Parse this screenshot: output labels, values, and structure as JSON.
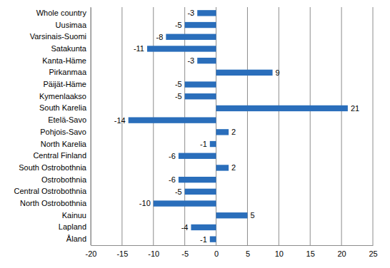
{
  "chart_data": {
    "type": "bar",
    "orientation": "horizontal",
    "categories": [
      "Whole country",
      "Uusimaa",
      "Varsinais-Suomi",
      "Satakunta",
      "Kanta-Häme",
      "Pirkanmaa",
      "Päijät-Häme",
      "Kymenlaakso",
      "South Karelia",
      "Etelä-Savo",
      "Pohjois-Savo",
      "North Karelia",
      "Central Finland",
      "South Ostrobothnia",
      "Ostrobothnia",
      "Central Ostrobothnia",
      "North Ostrobothnia",
      "Kainuu",
      "Lapland",
      "Åland"
    ],
    "values": [
      -3,
      -5,
      -8,
      -11,
      -3,
      9,
      -5,
      -5,
      21,
      -14,
      2,
      -1,
      -6,
      2,
      -6,
      -5,
      -10,
      5,
      -4,
      -1
    ],
    "color": "#2a6ebb",
    "xlim": [
      -20,
      25
    ],
    "xticks": [
      -20,
      -15,
      -10,
      -5,
      0,
      5,
      10,
      15,
      20,
      25
    ],
    "grid": true,
    "data_labels": true
  }
}
